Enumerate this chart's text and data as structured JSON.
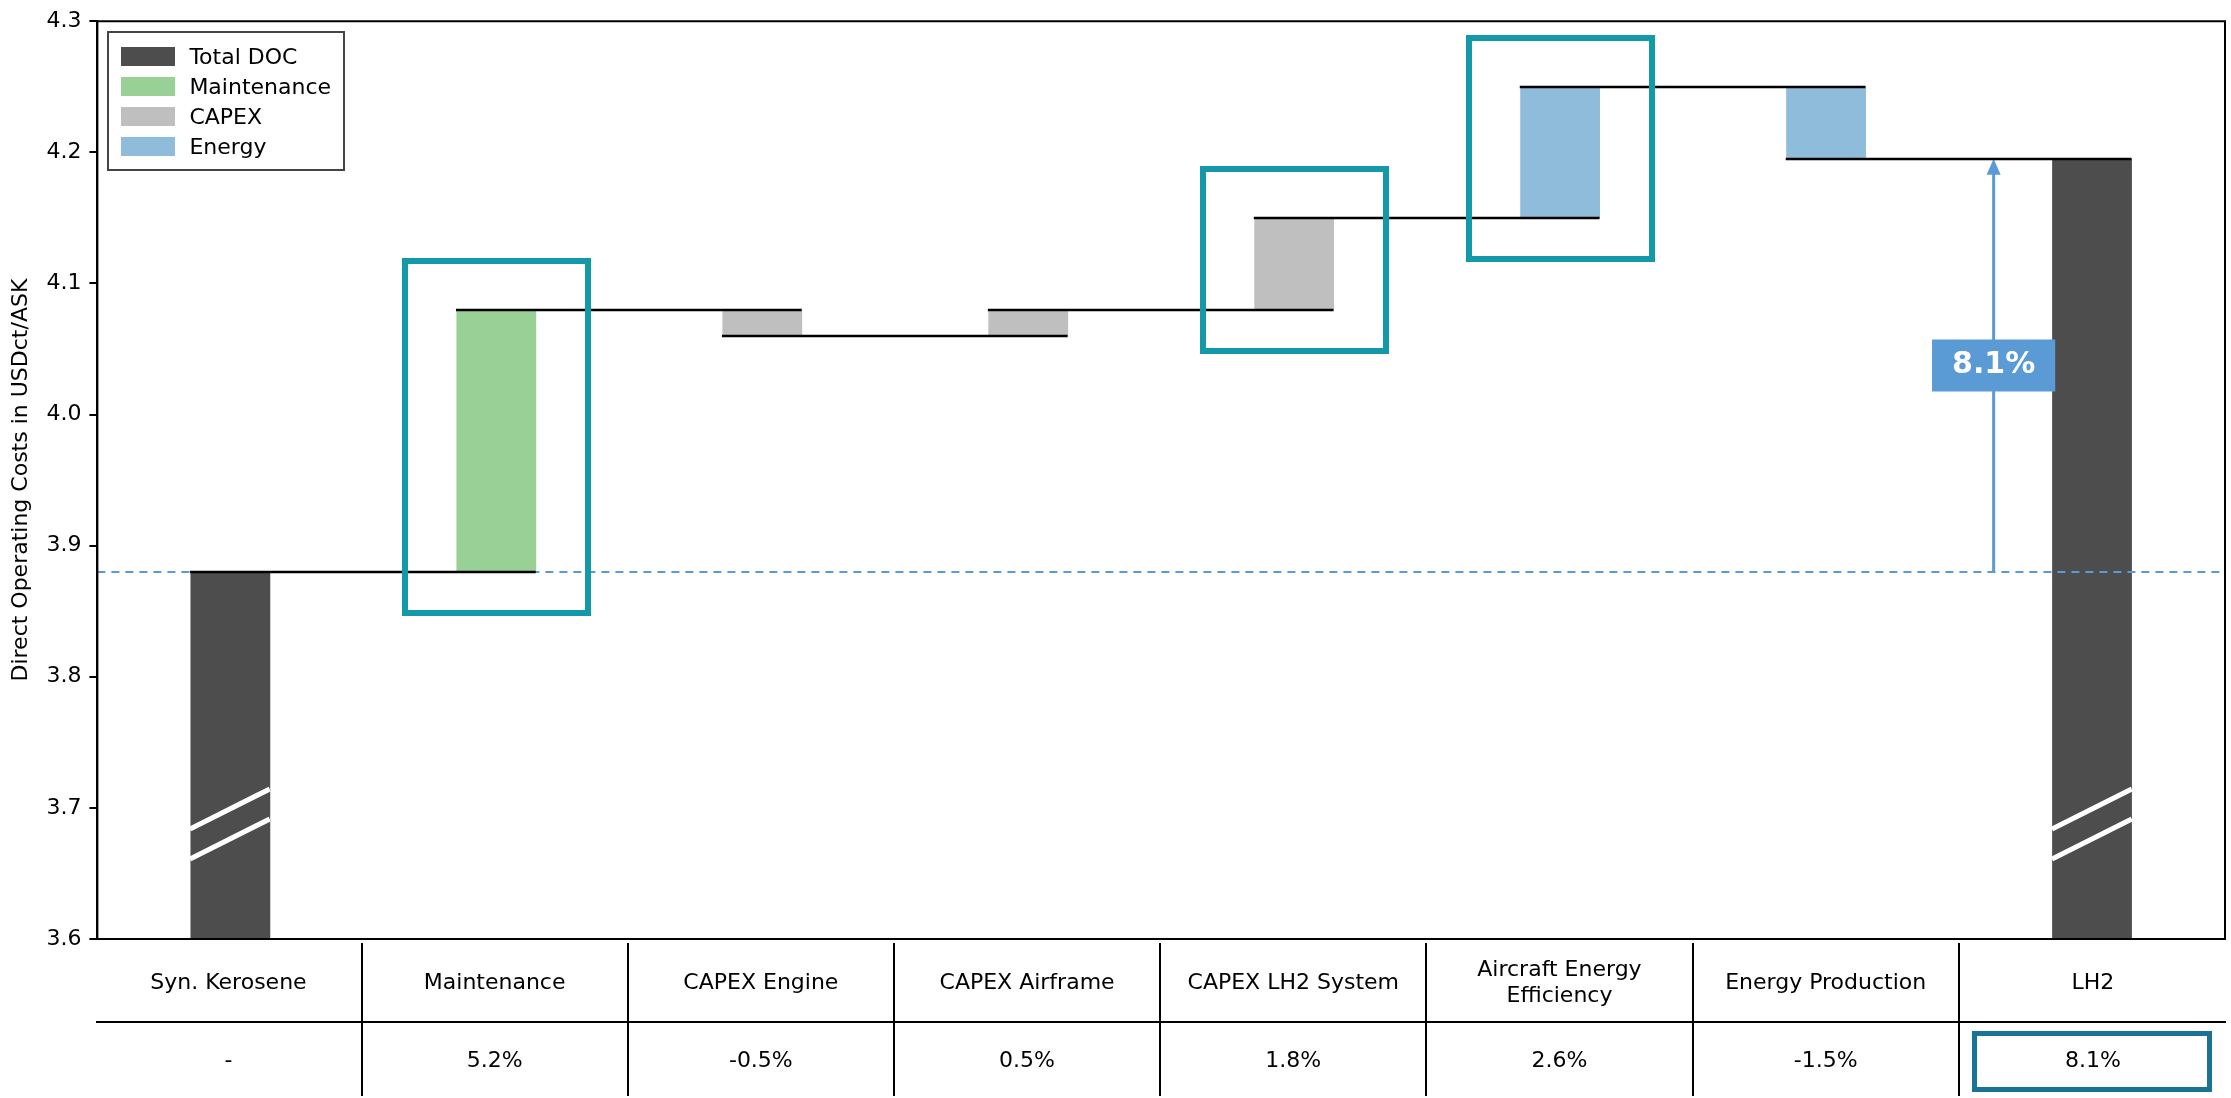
{
  "chart_data": {
    "type": "bar",
    "ylabel": "Direct Operating Costs in USDct/ASK",
    "categories": [
      "Syn. Kerosene",
      "Maintenance",
      "CAPEX Engine",
      "CAPEX Airframe",
      "CAPEX LH2 System",
      "Aircraft Energy Efficiency",
      "Energy Production",
      "LH2"
    ],
    "series": [
      {
        "name": "Total DOC",
        "color": "#4d4d4d",
        "values": [
          3.88,
          null,
          null,
          null,
          null,
          null,
          null,
          4.195
        ]
      },
      {
        "name": "Maintenance",
        "color": "#98d095",
        "values": [
          null,
          0.2,
          null,
          null,
          null,
          null,
          null,
          null
        ],
        "base": [
          null,
          3.88,
          null,
          null,
          null,
          null,
          null,
          null
        ]
      },
      {
        "name": "CAPEX",
        "color": "#bfbfbf",
        "values": [
          null,
          null,
          -0.02,
          0.02,
          0.07,
          null,
          null,
          null
        ],
        "base": [
          null,
          null,
          4.08,
          4.06,
          4.08,
          null,
          null,
          null
        ]
      },
      {
        "name": "Energy",
        "color": "#8fbcdb",
        "values": [
          null,
          null,
          null,
          null,
          null,
          0.1,
          -0.055,
          null
        ],
        "base": [
          null,
          null,
          null,
          null,
          null,
          4.15,
          4.25,
          null
        ]
      }
    ],
    "ylim": [
      3.6,
      4.3
    ],
    "yticks": [
      3.6,
      3.7,
      3.8,
      3.9,
      {
        "value": 4,
        "label": "4.0"
      },
      4.1,
      4.2,
      4.3
    ],
    "ref_lines": [
      {
        "axis": "y",
        "value": 3.88,
        "color": "#5b9bd5",
        "line_style": "dashed"
      }
    ],
    "annotations": [
      "8.1%",
      "-",
      "5.2%",
      "-0.5%",
      "0.5%",
      "1.8%",
      "2.6%",
      "-1.5%",
      "8.1%"
    ],
    "grid": false,
    "legend": "top left"
  }
}
